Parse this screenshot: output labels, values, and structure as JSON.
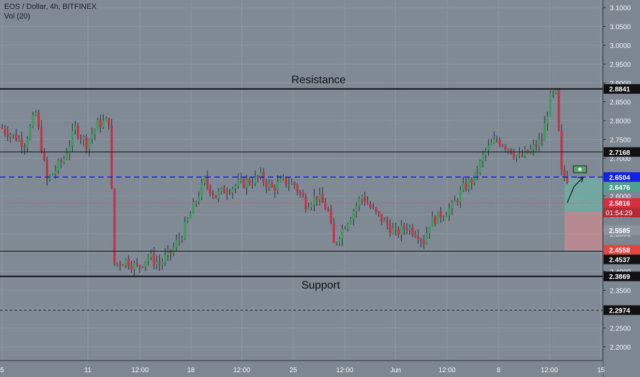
{
  "header": {
    "symbol_line": "EOS / Dollar, 4h, BITFINEX",
    "volume_line": "Vol (20)"
  },
  "colors": {
    "background": "#7f8a94",
    "grid": "#8e98a1",
    "bull": "#3f9a5c",
    "bear": "#c2334a",
    "wick": "#2b2f34",
    "blue_dash": "#1022e8",
    "red_dot": "#e84a4a",
    "target_zone": "#6fb0a6",
    "stop_zone": "#c98990",
    "scale_bg": "#7d8791",
    "scale_text": "#ffffff"
  },
  "chart_data": {
    "type": "candlestick",
    "symbol": "EOS / Dollar",
    "timeframe": "4h",
    "exchange": "BITFINEX",
    "ylim": [
      2.16,
      3.13
    ],
    "y_ticks": [
      "3.1000",
      "3.0500",
      "3.0000",
      "2.9500",
      "2.9000",
      "2.8500",
      "2.8000",
      "2.7500",
      "2.7000",
      "2.6500",
      "2.6000",
      "2.5500",
      "2.5000",
      "2.4500",
      "2.4000",
      "2.3500",
      "2.3000",
      "2.2500",
      "2.2000"
    ],
    "x_ticks": [
      "5",
      "11",
      "12:00",
      "18",
      "12:00",
      "25",
      "12:00",
      "Jun",
      "12:00",
      "8",
      "12:00",
      "15"
    ],
    "grid": true,
    "candle_count": 202,
    "anchors": [
      [
        0,
        2.78
      ],
      [
        8,
        2.74
      ],
      [
        12,
        2.82
      ],
      [
        16,
        2.64
      ],
      [
        18,
        2.66
      ],
      [
        22,
        2.7
      ],
      [
        26,
        2.78
      ],
      [
        30,
        2.74
      ],
      [
        34,
        2.79
      ],
      [
        38,
        2.8
      ],
      [
        40,
        2.42
      ],
      [
        44,
        2.43
      ],
      [
        48,
        2.41
      ],
      [
        52,
        2.44
      ],
      [
        56,
        2.42
      ],
      [
        60,
        2.45
      ],
      [
        64,
        2.5
      ],
      [
        68,
        2.57
      ],
      [
        72,
        2.64
      ],
      [
        76,
        2.6
      ],
      [
        80,
        2.62
      ],
      [
        84,
        2.63
      ],
      [
        88,
        2.64
      ],
      [
        92,
        2.65
      ],
      [
        96,
        2.62
      ],
      [
        100,
        2.64
      ],
      [
        104,
        2.63
      ],
      [
        108,
        2.58
      ],
      [
        112,
        2.6
      ],
      [
        116,
        2.56
      ],
      [
        118,
        2.47
      ],
      [
        120,
        2.5
      ],
      [
        124,
        2.55
      ],
      [
        128,
        2.6
      ],
      [
        132,
        2.56
      ],
      [
        136,
        2.53
      ],
      [
        140,
        2.5
      ],
      [
        144,
        2.52
      ],
      [
        148,
        2.5
      ],
      [
        150,
        2.48
      ],
      [
        152,
        2.53
      ],
      [
        156,
        2.55
      ],
      [
        160,
        2.57
      ],
      [
        164,
        2.62
      ],
      [
        168,
        2.65
      ],
      [
        172,
        2.72
      ],
      [
        176,
        2.75
      ],
      [
        180,
        2.73
      ],
      [
        184,
        2.7
      ],
      [
        188,
        2.72
      ],
      [
        192,
        2.75
      ],
      [
        195,
        2.86
      ],
      [
        197,
        2.87
      ],
      [
        199,
        2.66
      ],
      [
        202,
        2.64
      ]
    ],
    "levels": [
      {
        "name": "Resistance",
        "value": 2.8841,
        "label": "2.8841",
        "style": "solid"
      },
      {
        "value": 2.7168,
        "label": "2.7168",
        "style": "solid"
      },
      {
        "value": 2.6504,
        "label": "2.6504",
        "style": "dashed"
      },
      {
        "value": 2.6476,
        "label": "2.6476",
        "style": "tag"
      },
      {
        "value": 2.5816,
        "label": "2.5816",
        "style": "dotted",
        "timer": "01:54:29"
      },
      {
        "value": 2.5585,
        "label": "2.5585",
        "style": "tag"
      },
      {
        "value": 2.4558,
        "label": "2.4558",
        "style": "tag"
      },
      {
        "value": 2.4537,
        "label": "2.4537",
        "style": "solid"
      },
      {
        "name": "Support",
        "value": 2.3869,
        "label": "2.3869",
        "style": "solid"
      },
      {
        "value": 2.2974,
        "label": "2.2974",
        "style": "dashed"
      }
    ],
    "annotations": [
      "Resistance",
      "Support"
    ],
    "position": {
      "entry": 2.5585,
      "target": 2.6476,
      "stop": 2.4558
    }
  }
}
